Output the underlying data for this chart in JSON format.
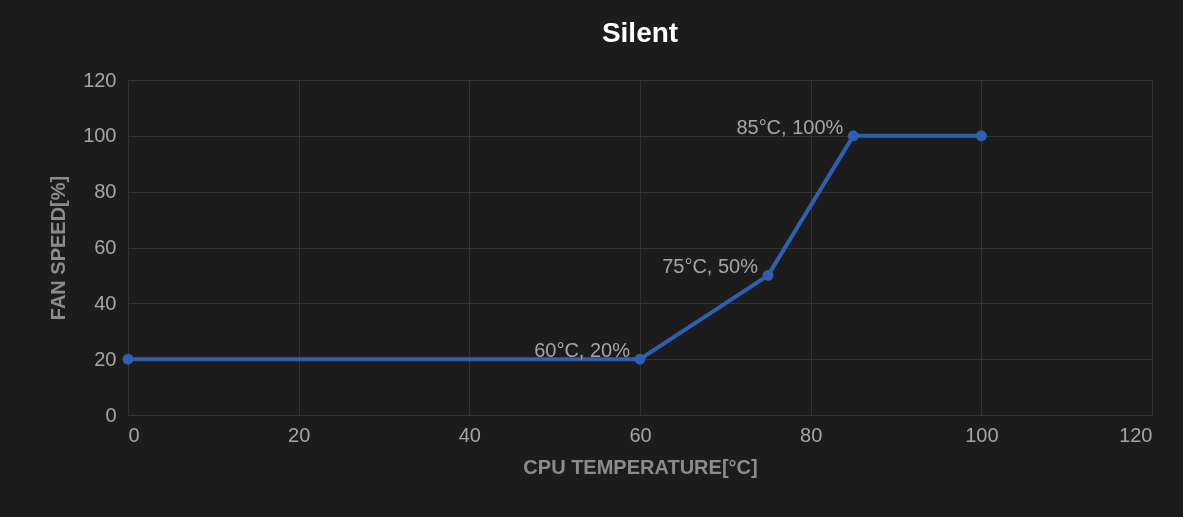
{
  "chart_data": {
    "type": "line",
    "title": "Silent",
    "xlabel": "CPU TEMPERATURE[°C]",
    "ylabel": "FAN SPEED[%]",
    "x": [
      0,
      60,
      75,
      85,
      100
    ],
    "series": [
      {
        "color": "#2f5fb0",
        "values": [
          20,
          20,
          50,
          100,
          100
        ]
      }
    ],
    "xlim": [
      0,
      120
    ],
    "xticks": [
      0,
      20,
      40,
      60,
      80,
      100,
      120
    ],
    "ylim": [
      0,
      120
    ],
    "yticks": [
      0,
      20,
      40,
      60,
      80,
      100,
      120
    ],
    "grid": true,
    "marker": "circle",
    "line_style": "solid",
    "annotations": [
      {
        "text": "60°C, 20%",
        "x": 60,
        "y": 20
      },
      {
        "text": "75°C, 50%",
        "x": 75,
        "y": 50
      },
      {
        "text": "85°C, 100%",
        "x": 85,
        "y": 100
      }
    ]
  }
}
